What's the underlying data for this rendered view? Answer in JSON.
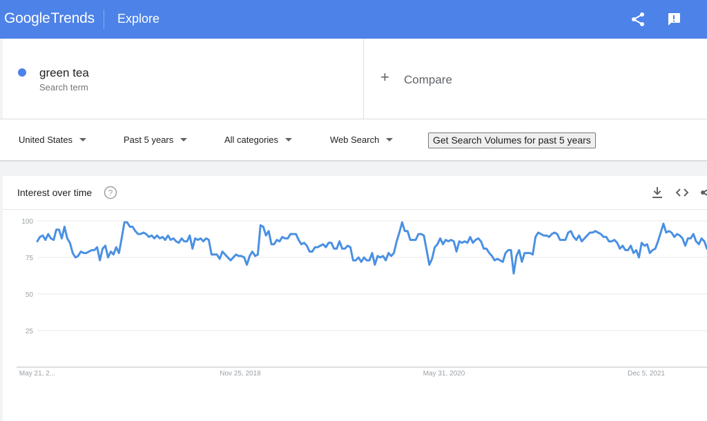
{
  "header": {
    "logo_google": "Google",
    "logo_trends": "Trends",
    "page": "Explore",
    "share_icon": "share-icon",
    "feedback_icon": "feedback-icon"
  },
  "search_term": {
    "name": "green tea",
    "subtitle": "Search term",
    "color": "#4d82e8"
  },
  "compare": {
    "label": "Compare"
  },
  "filters": {
    "region": "United States",
    "time": "Past 5 years",
    "category": "All categories",
    "search_type": "Web Search",
    "volumes_button": "Get Search Volumes for past 5 years"
  },
  "interest_card": {
    "title": "Interest over time",
    "icons": [
      "help-icon",
      "download-icon",
      "embed-icon",
      "share-icon"
    ]
  },
  "chart_data": {
    "type": "line",
    "x_ticks": [
      "May 21, 2...",
      "Nov 25, 2018",
      "May 31, 2020",
      "Dec 5, 2021"
    ],
    "y_ticks": [
      25,
      50,
      75,
      100
    ],
    "ylim": [
      0,
      100
    ],
    "grid": true,
    "line_color": "#4a90e2",
    "series": [
      {
        "values": [
          86,
          89,
          90,
          87,
          91,
          88,
          87,
          94,
          94,
          88,
          96,
          88,
          85,
          78,
          75,
          76,
          79,
          78,
          78,
          79,
          80,
          80,
          82,
          73,
          81,
          83,
          75,
          79,
          77,
          82,
          78,
          88,
          99,
          99,
          96,
          96,
          93,
          91,
          91,
          92,
          91,
          89,
          90,
          88,
          90,
          88,
          89,
          87,
          90,
          87,
          88,
          86,
          85,
          88,
          86,
          86,
          90,
          81,
          88,
          87,
          88,
          86,
          88,
          87,
          77,
          77,
          77,
          74,
          79,
          77,
          75,
          73,
          75,
          77,
          76,
          76,
          75,
          70,
          76,
          79,
          76,
          77,
          97,
          96,
          90,
          93,
          84,
          84,
          87,
          86,
          89,
          88,
          88,
          91,
          91,
          91,
          87,
          84,
          85,
          83,
          79,
          79,
          82,
          82,
          83,
          84,
          82,
          85,
          85,
          81,
          81,
          86,
          81,
          81,
          83,
          82,
          73,
          73,
          75,
          72,
          75,
          73,
          73,
          78,
          70,
          76,
          75,
          76,
          73,
          78,
          76,
          78,
          86,
          92,
          99,
          93,
          93,
          87,
          87,
          87,
          91,
          91,
          90,
          80,
          70,
          74,
          82,
          84,
          88,
          84,
          87,
          86,
          87,
          86,
          79,
          86,
          85,
          86,
          85,
          89,
          85,
          87,
          88,
          86,
          81,
          81,
          78,
          76,
          73,
          74,
          73,
          72,
          78,
          80,
          80,
          64,
          76,
          80,
          72,
          78,
          78,
          78,
          77,
          89,
          92,
          91,
          90,
          90,
          89,
          91,
          92,
          91,
          87,
          87,
          87,
          92,
          93,
          89,
          87,
          90,
          86,
          88,
          90,
          92,
          92,
          93,
          92,
          91,
          89,
          89,
          86,
          86,
          87,
          85,
          81,
          83,
          80,
          80,
          83,
          78,
          80,
          75,
          85,
          83,
          84,
          78,
          80,
          81,
          86,
          92,
          98,
          92,
          93,
          92,
          89,
          91,
          90,
          88,
          83,
          88,
          88,
          91,
          86,
          84,
          88,
          86,
          81
        ]
      }
    ]
  }
}
